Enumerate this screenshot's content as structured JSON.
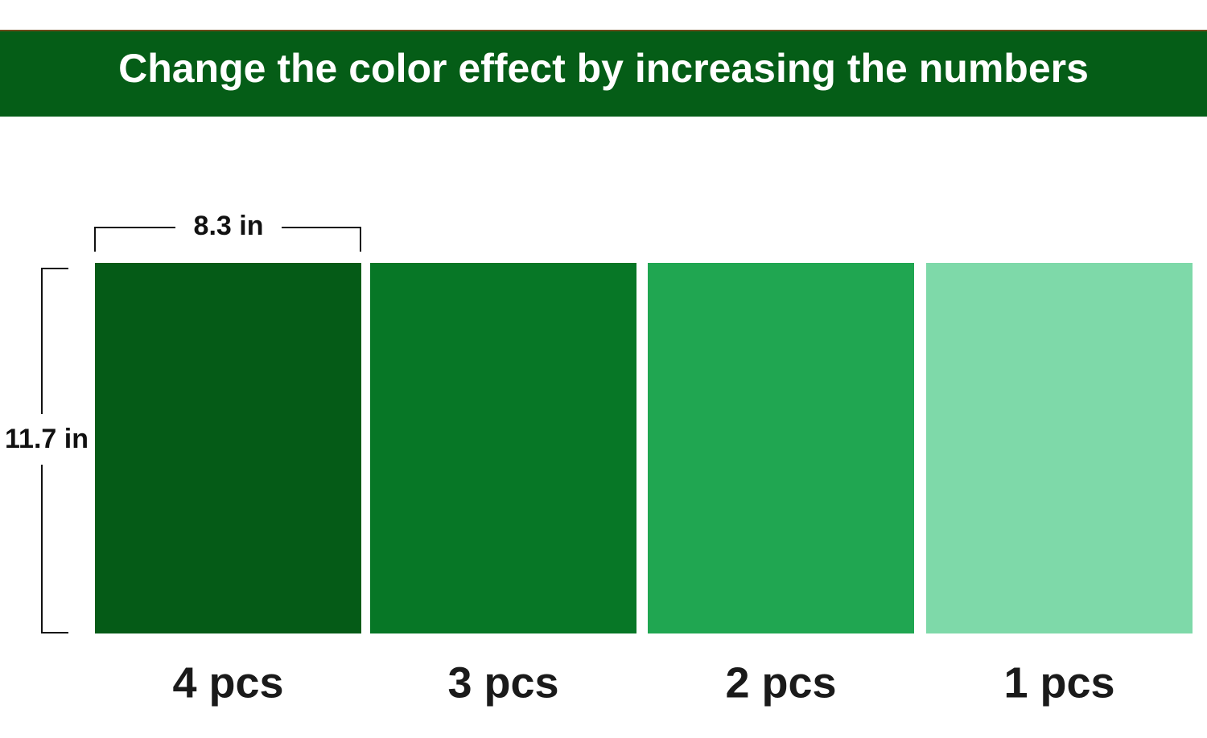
{
  "header": {
    "title": "Change the color effect by increasing the numbers"
  },
  "dimensions": {
    "width": "8.3 in",
    "height": "11.7 in"
  },
  "swatches": [
    {
      "label": "4 pcs",
      "color": "#055b17"
    },
    {
      "label": "3 pcs",
      "color": "#077726"
    },
    {
      "label": "2 pcs",
      "color": "#20a651"
    },
    {
      "label": "1 pcs",
      "color": "#7ed9a9"
    }
  ]
}
